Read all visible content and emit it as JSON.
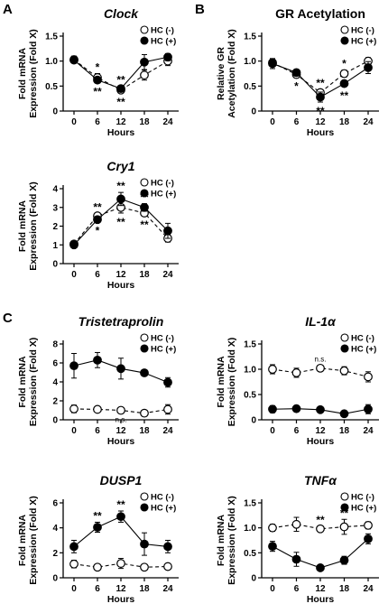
{
  "panel_letters": [
    "A",
    "B",
    "C"
  ],
  "legend_labels": [
    "HC (-)",
    "HC (+)"
  ],
  "chart_data": [
    {
      "type": "line",
      "panel": "A",
      "title": "Clock",
      "title_italic": true,
      "ylabel": [
        "Fold mRNA",
        "Expression (Fold X)"
      ],
      "xlabel": "Hours",
      "x": [
        0,
        6,
        12,
        18,
        24
      ],
      "xticks": [
        "0",
        "6",
        "12",
        "18",
        "24"
      ],
      "ylim": [
        0,
        1.5
      ],
      "yticks": [
        0,
        0.5,
        1.0,
        1.5
      ],
      "ytick_labels": [
        "0",
        "0.5",
        "1.0",
        "1.5"
      ],
      "grid": false,
      "legend_position": "top-right",
      "series": [
        {
          "name": "HC (-)",
          "marker": "open",
          "line": "dashed",
          "values": [
            1.03,
            0.67,
            0.42,
            0.72,
            1.0
          ],
          "errors": [
            0.07,
            0.08,
            0.06,
            0.1,
            0.09
          ]
        },
        {
          "name": "HC (+)",
          "marker": "filled",
          "line": "solid",
          "values": [
            1.02,
            0.62,
            0.45,
            0.98,
            1.08
          ],
          "errors": [
            0.06,
            0.05,
            0.05,
            0.15,
            0.07
          ]
        }
      ],
      "annotations": [
        {
          "x": 6,
          "text": "*",
          "pos": "above"
        },
        {
          "x": 6,
          "text": "**",
          "pos": "below"
        },
        {
          "x": 12,
          "text": "**",
          "pos": "above"
        },
        {
          "x": 12,
          "text": "**",
          "pos": "below"
        }
      ]
    },
    {
      "type": "line",
      "panel": "B",
      "title": "GR Acetylation",
      "title_italic": false,
      "ylabel": [
        "Relative GR",
        "Acetylation (Fold X)"
      ],
      "xlabel": "Hours",
      "x": [
        0,
        6,
        12,
        18,
        24
      ],
      "xticks": [
        "0",
        "6",
        "12",
        "18",
        "24"
      ],
      "ylim": [
        0,
        1.5
      ],
      "yticks": [
        0,
        0.5,
        1.0,
        1.5
      ],
      "ytick_labels": [
        "0",
        "0.5",
        "1.0",
        "1.5"
      ],
      "grid": false,
      "legend_position": "top-right",
      "series": [
        {
          "name": "HC (-)",
          "marker": "open",
          "line": "dashed",
          "values": [
            0.97,
            0.73,
            0.37,
            0.75,
            1.0
          ],
          "errors": [
            0.08,
            0.05,
            0.06,
            0.07,
            0.07
          ]
        },
        {
          "name": "HC (+)",
          "marker": "filled",
          "line": "solid",
          "values": [
            0.95,
            0.77,
            0.28,
            0.55,
            0.87
          ],
          "errors": [
            0.1,
            0.06,
            0.1,
            0.06,
            0.12
          ]
        }
      ],
      "annotations": [
        {
          "x": 6,
          "text": "*",
          "pos": "below"
        },
        {
          "x": 12,
          "text": "**",
          "pos": "above"
        },
        {
          "x": 12,
          "text": "**",
          "pos": "below"
        },
        {
          "x": 18,
          "text": "*",
          "pos": "above"
        },
        {
          "x": 18,
          "text": "**",
          "pos": "below"
        }
      ]
    },
    {
      "type": "line",
      "panel": "A",
      "title": "Cry1",
      "title_italic": true,
      "ylabel": [
        "Fold mRNA",
        "Expression (Fold X)"
      ],
      "xlabel": "Hours",
      "x": [
        0,
        6,
        12,
        18,
        24
      ],
      "xticks": [
        "0",
        "6",
        "12",
        "18",
        "24"
      ],
      "ylim": [
        0,
        4
      ],
      "yticks": [
        0,
        1,
        2,
        3,
        4
      ],
      "ytick_labels": [
        "0",
        "1",
        "2",
        "3",
        "4"
      ],
      "grid": false,
      "legend_position": "top-right",
      "series": [
        {
          "name": "HC (-)",
          "marker": "open",
          "line": "dashed",
          "values": [
            1.05,
            2.55,
            3.0,
            2.7,
            1.35
          ],
          "errors": [
            0.1,
            0.12,
            0.3,
            0.15,
            0.2
          ]
        },
        {
          "name": "HC (+)",
          "marker": "filled",
          "line": "solid",
          "values": [
            1.0,
            2.35,
            3.45,
            3.0,
            1.75
          ],
          "errors": [
            0.1,
            0.12,
            0.35,
            0.2,
            0.4
          ]
        }
      ],
      "annotations": [
        {
          "x": 6,
          "text": "**",
          "pos": "above"
        },
        {
          "x": 6,
          "text": "*",
          "pos": "below"
        },
        {
          "x": 12,
          "text": "**",
          "pos": "above"
        },
        {
          "x": 12,
          "text": "**",
          "pos": "below"
        },
        {
          "x": 18,
          "text": "**",
          "pos": "above"
        },
        {
          "x": 18,
          "text": "**",
          "pos": "below"
        }
      ]
    },
    {
      "type": "line",
      "panel": "C",
      "title": "Tristetraprolin",
      "title_italic": true,
      "ylabel": [
        "Fold mRNA",
        "Expression (Fold X)"
      ],
      "xlabel": "Hours",
      "x": [
        0,
        6,
        12,
        18,
        24
      ],
      "xticks": [
        "0",
        "6",
        "12",
        "18",
        "24"
      ],
      "ylim": [
        0,
        8
      ],
      "yticks": [
        0,
        2,
        4,
        6,
        8
      ],
      "ytick_labels": [
        "0",
        "2",
        "4",
        "6",
        "8"
      ],
      "grid": false,
      "legend_position": "top-right",
      "series": [
        {
          "name": "HC (-)",
          "marker": "open",
          "line": "dashed",
          "values": [
            1.15,
            1.1,
            1.0,
            0.7,
            1.1
          ],
          "errors": [
            0.4,
            0.3,
            0.2,
            0.2,
            0.5
          ]
        },
        {
          "name": "HC (+)",
          "marker": "filled",
          "line": "solid",
          "values": [
            5.7,
            6.3,
            5.4,
            4.95,
            3.95
          ],
          "errors": [
            1.3,
            0.8,
            1.1,
            0.3,
            0.5
          ]
        }
      ],
      "annotations": [
        {
          "x": 12,
          "text": "n.s.",
          "pos": "below"
        }
      ]
    },
    {
      "type": "line",
      "panel": "C",
      "title": "IL-1α",
      "title_italic": true,
      "ylabel": [
        "Fold mRNA",
        "Expression (Fold X)"
      ],
      "xlabel": "Hours",
      "x": [
        0,
        6,
        12,
        18,
        24
      ],
      "xticks": [
        "0",
        "6",
        "12",
        "18",
        "24"
      ],
      "ylim": [
        0,
        1.5
      ],
      "yticks": [
        0,
        0.5,
        1.0,
        1.5
      ],
      "ytick_labels": [
        "0",
        "0.5",
        "1.0",
        "1.5"
      ],
      "grid": false,
      "legend_position": "top-right",
      "series": [
        {
          "name": "HC (-)",
          "marker": "open",
          "line": "dashed",
          "values": [
            1.0,
            0.93,
            1.02,
            0.97,
            0.85
          ],
          "errors": [
            0.09,
            0.09,
            0.06,
            0.08,
            0.1
          ]
        },
        {
          "name": "HC (+)",
          "marker": "filled",
          "line": "solid",
          "values": [
            0.21,
            0.22,
            0.2,
            0.12,
            0.21
          ],
          "errors": [
            0.07,
            0.06,
            0.05,
            0.06,
            0.09
          ]
        }
      ],
      "annotations": [
        {
          "x": 12,
          "text": "n.s.",
          "pos": "above"
        }
      ]
    },
    {
      "type": "line",
      "panel": "C",
      "title": "DUSP1",
      "title_italic": true,
      "ylabel": [
        "Fold mRNA",
        "Expression (Fold X)"
      ],
      "xlabel": "Hours",
      "x": [
        0,
        6,
        12,
        18,
        24
      ],
      "xticks": [
        "0",
        "6",
        "12",
        "18",
        "24"
      ],
      "ylim": [
        0,
        6
      ],
      "yticks": [
        0,
        2,
        4,
        6
      ],
      "ytick_labels": [
        "0",
        "2",
        "4",
        "6"
      ],
      "grid": false,
      "legend_position": "top-right",
      "series": [
        {
          "name": "HC (-)",
          "marker": "open",
          "line": "dashed",
          "values": [
            1.1,
            0.85,
            1.15,
            0.85,
            0.9
          ],
          "errors": [
            0.3,
            0.2,
            0.4,
            0.2,
            0.25
          ]
        },
        {
          "name": "HC (+)",
          "marker": "filled",
          "line": "solid",
          "values": [
            2.5,
            4.05,
            4.9,
            2.7,
            2.5
          ],
          "errors": [
            0.5,
            0.4,
            0.45,
            0.9,
            0.5
          ]
        }
      ],
      "annotations": [
        {
          "x": 6,
          "text": "**",
          "pos": "above"
        },
        {
          "x": 12,
          "text": "**",
          "pos": "above"
        }
      ]
    },
    {
      "type": "line",
      "panel": "C",
      "title": "TNFα",
      "title_italic": true,
      "ylabel": [
        "Fold mRNA",
        "Expression (Fold X)"
      ],
      "xlabel": "Hours",
      "x": [
        0,
        6,
        12,
        18,
        24
      ],
      "xticks": [
        "0",
        "6",
        "12",
        "18",
        "24"
      ],
      "ylim": [
        0,
        1.5
      ],
      "yticks": [
        0,
        0.5,
        1.0,
        1.5
      ],
      "ytick_labels": [
        "0",
        "0.5",
        "1.0",
        "1.5"
      ],
      "grid": false,
      "legend_position": "top-right",
      "series": [
        {
          "name": "HC (-)",
          "marker": "open",
          "line": "dashed",
          "values": [
            1.0,
            1.07,
            0.98,
            1.02,
            1.05
          ],
          "errors": [
            0.07,
            0.14,
            0.05,
            0.15,
            0.07
          ]
        },
        {
          "name": "HC (+)",
          "marker": "filled",
          "line": "solid",
          "values": [
            0.63,
            0.37,
            0.2,
            0.35,
            0.78
          ],
          "errors": [
            0.1,
            0.14,
            0.04,
            0.08,
            0.1
          ]
        }
      ],
      "annotations": [
        {
          "x": 12,
          "text": "**",
          "pos": "above"
        },
        {
          "x": 18,
          "text": "**",
          "pos": "above"
        }
      ]
    }
  ]
}
